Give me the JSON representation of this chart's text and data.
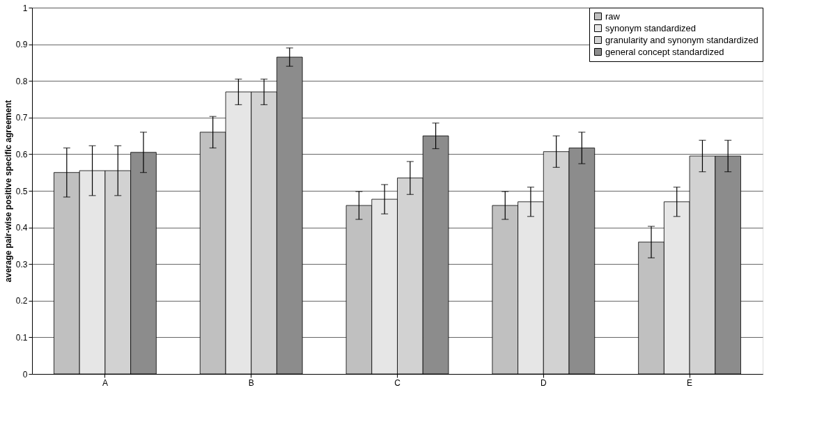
{
  "chart_data": {
    "type": "bar",
    "ylabel": "average pair-wise positive specific agreement",
    "categories": [
      "A",
      "B",
      "C",
      "D",
      "E"
    ],
    "series": [
      {
        "name": "raw",
        "color": "#c0c0c0",
        "values": [
          0.55,
          0.66,
          0.46,
          0.46,
          0.36
        ],
        "errors": [
          0.067,
          0.043,
          0.038,
          0.038,
          0.043
        ]
      },
      {
        "name": "synonym standardized",
        "color": "#e6e6e6",
        "values": [
          0.555,
          0.77,
          0.477,
          0.47,
          0.47
        ],
        "errors": [
          0.068,
          0.035,
          0.04,
          0.04,
          0.04
        ]
      },
      {
        "name": "granularity and synonym standardized",
        "color": "#d2d2d2",
        "values": [
          0.555,
          0.77,
          0.535,
          0.607,
          0.595
        ],
        "errors": [
          0.068,
          0.035,
          0.045,
          0.043,
          0.043
        ]
      },
      {
        "name": "general concept standardized",
        "color": "#8c8c8c",
        "values": [
          0.605,
          0.865,
          0.65,
          0.617,
          0.595
        ],
        "errors": [
          0.055,
          0.025,
          0.035,
          0.043,
          0.043
        ]
      }
    ],
    "ylim": [
      0,
      1
    ],
    "yticks": [
      0,
      0.1,
      0.2,
      0.3,
      0.4,
      0.5,
      0.6,
      0.7,
      0.8,
      0.9,
      1
    ],
    "grid": "y",
    "legend": "top right"
  }
}
